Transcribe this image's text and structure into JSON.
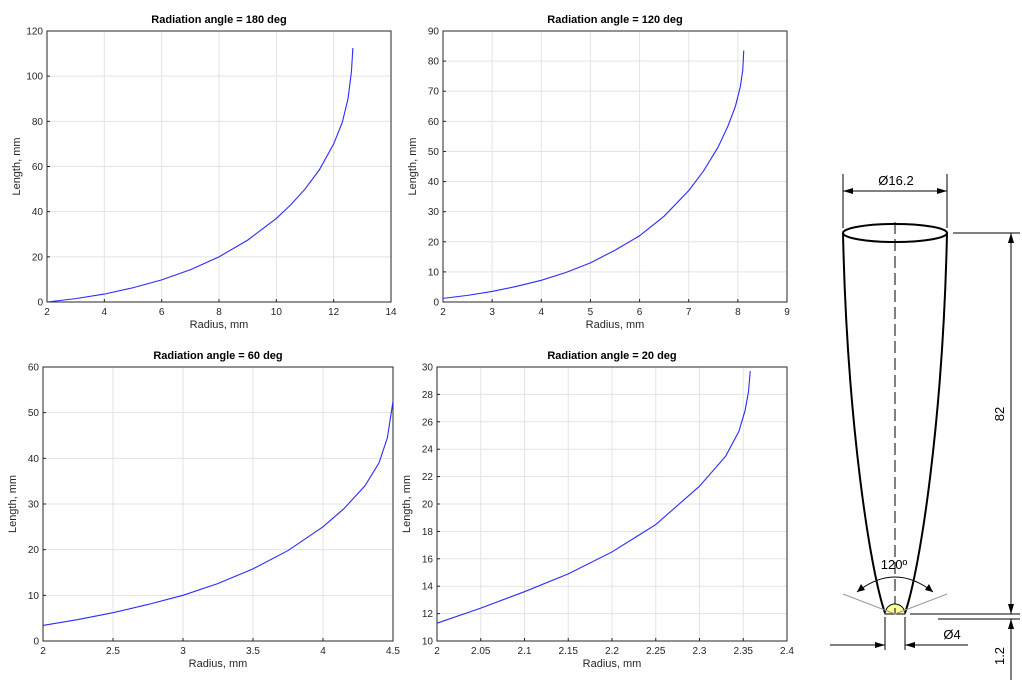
{
  "colors": {
    "curve": "#2b2bff",
    "axis": "#262626",
    "grid": "#e3e3e3",
    "cone_tip": "#ffff99"
  },
  "chart_data": [
    {
      "type": "line",
      "title": "Radiation angle = 180 deg",
      "xlabel": "Radius, mm",
      "ylabel": "Length, mm",
      "xlim": [
        2,
        14
      ],
      "ylim": [
        0,
        120
      ],
      "xticks": [
        "2",
        "4",
        "6",
        "8",
        "10",
        "12",
        "14"
      ],
      "yticks": [
        "0",
        "20",
        "40",
        "60",
        "80",
        "100",
        "120"
      ],
      "grid": true,
      "series": [
        {
          "x": [
            2.0,
            3.0,
            4.0,
            5.0,
            6.0,
            7.0,
            8.0,
            9.0,
            10.0,
            10.5,
            11.0,
            11.5,
            12.0,
            12.3,
            12.5,
            12.62,
            12.67
          ],
          "y": [
            0,
            1.5,
            3.5,
            6.3,
            9.8,
            14.3,
            20,
            27.4,
            37,
            43,
            50,
            58.5,
            70,
            79.5,
            90,
            102,
            112.5
          ]
        }
      ]
    },
    {
      "type": "line",
      "title": "Radiation angle = 120 deg",
      "xlabel": "Radius, mm",
      "ylabel": "Length, mm",
      "xlim": [
        2,
        9
      ],
      "ylim": [
        0,
        90
      ],
      "xticks": [
        "2",
        "3",
        "4",
        "5",
        "6",
        "7",
        "8",
        "9"
      ],
      "yticks": [
        "0",
        "10",
        "20",
        "30",
        "40",
        "50",
        "60",
        "70",
        "80",
        "90"
      ],
      "grid": true,
      "series": [
        {
          "x": [
            2.0,
            2.5,
            3.0,
            3.5,
            4.0,
            4.5,
            5.0,
            5.5,
            6.0,
            6.5,
            7.0,
            7.3,
            7.6,
            7.8,
            7.95,
            8.05,
            8.1,
            8.12
          ],
          "y": [
            1.2,
            2.2,
            3.5,
            5.2,
            7.2,
            9.8,
            13,
            17.2,
            22,
            28.5,
            37,
            43.5,
            51.5,
            58.5,
            65,
            71.5,
            77,
            83.5
          ]
        }
      ]
    },
    {
      "type": "line",
      "title": "Radiation angle = 60 deg",
      "xlabel": "Radius, mm",
      "ylabel": "Length, mm",
      "xlim": [
        2,
        4.5
      ],
      "ylim": [
        0,
        60
      ],
      "xticks": [
        "2",
        "2.5",
        "3",
        "3.5",
        "4",
        "4.5"
      ],
      "yticks": [
        "0",
        "10",
        "20",
        "30",
        "40",
        "50",
        "60"
      ],
      "grid": true,
      "series": [
        {
          "x": [
            2.0,
            2.25,
            2.5,
            2.75,
            3.0,
            3.25,
            3.5,
            3.75,
            4.0,
            4.15,
            4.3,
            4.4,
            4.46,
            4.5
          ],
          "y": [
            3.4,
            4.7,
            6.2,
            8.0,
            10.0,
            12.6,
            15.8,
            19.8,
            25.0,
            29.0,
            34.0,
            39.0,
            44.5,
            52.5
          ]
        }
      ]
    },
    {
      "type": "line",
      "title": "Radiation angle = 20 deg",
      "xlabel": "Radius, mm",
      "ylabel": "Length, mm",
      "xlim": [
        2,
        2.4
      ],
      "ylim": [
        10,
        30
      ],
      "xticks": [
        "2",
        "2.05",
        "2.1",
        "2.15",
        "2.2",
        "2.25",
        "2.3",
        "2.35",
        "2.4"
      ],
      "yticks": [
        "10",
        "12",
        "14",
        "16",
        "18",
        "20",
        "22",
        "24",
        "26",
        "28",
        "30"
      ],
      "grid": true,
      "series": [
        {
          "x": [
            2.0,
            2.05,
            2.1,
            2.15,
            2.2,
            2.25,
            2.3,
            2.33,
            2.345,
            2.352,
            2.356,
            2.358
          ],
          "y": [
            11.3,
            12.4,
            13.6,
            14.9,
            16.5,
            18.5,
            21.3,
            23.5,
            25.3,
            26.8,
            28.2,
            29.7
          ]
        }
      ]
    }
  ],
  "drawing": {
    "top_diameter": "Ø16.2",
    "length": "82",
    "angle": "120º",
    "tip_diameter": "Ø4",
    "offset": "1.2"
  }
}
